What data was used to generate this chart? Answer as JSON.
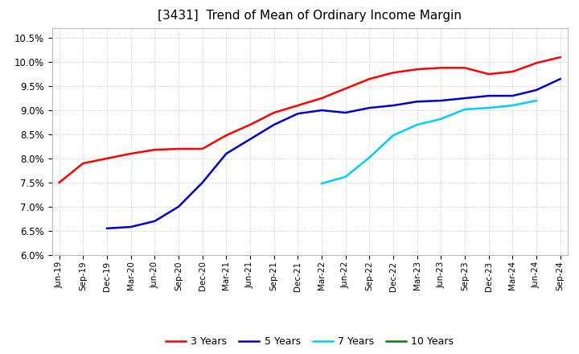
{
  "title": "[3431]  Trend of Mean of Ordinary Income Margin",
  "title_fontsize": 11,
  "background_color": "#ffffff",
  "grid_color": "#999999",
  "x_labels": [
    "Jun-19",
    "Sep-19",
    "Dec-19",
    "Mar-20",
    "Jun-20",
    "Sep-20",
    "Dec-20",
    "Mar-21",
    "Jun-21",
    "Sep-21",
    "Dec-21",
    "Mar-22",
    "Jun-22",
    "Sep-22",
    "Dec-22",
    "Mar-23",
    "Jun-23",
    "Sep-23",
    "Dec-23",
    "Mar-24",
    "Jun-24",
    "Sep-24"
  ],
  "ylim": [
    0.06,
    0.107
  ],
  "yticks": [
    0.06,
    0.065,
    0.07,
    0.075,
    0.08,
    0.085,
    0.09,
    0.095,
    0.1,
    0.105
  ],
  "series_3yr": {
    "color": "#ff0000",
    "indices": [
      0,
      1,
      2,
      3,
      4,
      5,
      6,
      7,
      8,
      9,
      10,
      11,
      12,
      13,
      14,
      15,
      16,
      17,
      18,
      19,
      20,
      21
    ],
    "values": [
      0.075,
      0.079,
      0.08,
      0.081,
      0.0818,
      0.082,
      0.082,
      0.0848,
      0.087,
      0.0895,
      0.091,
      0.0925,
      0.0945,
      0.0965,
      0.0978,
      0.0985,
      0.0988,
      0.0988,
      0.0975,
      0.098,
      0.0998,
      0.101
    ]
  },
  "series_5yr": {
    "color": "#0000cc",
    "indices": [
      2,
      3,
      4,
      5,
      6,
      7,
      8,
      9,
      10,
      11,
      12,
      13,
      14,
      15,
      16,
      17,
      18,
      19,
      20,
      21
    ],
    "values": [
      0.0655,
      0.0658,
      0.067,
      0.07,
      0.075,
      0.081,
      0.084,
      0.087,
      0.0893,
      0.09,
      0.0895,
      0.0905,
      0.091,
      0.0918,
      0.092,
      0.0925,
      0.093,
      0.093,
      0.0942,
      0.0965
    ]
  },
  "series_7yr": {
    "color": "#00ccff",
    "indices": [
      11,
      12,
      13,
      14,
      15,
      16,
      17,
      18,
      19,
      20
    ],
    "values": [
      0.0748,
      0.0762,
      0.0802,
      0.0848,
      0.087,
      0.0882,
      0.0902,
      0.0905,
      0.091,
      0.092
    ]
  },
  "series_10yr": {
    "color": "#008000",
    "indices": [],
    "values": []
  },
  "legend_labels": [
    "3 Years",
    "5 Years",
    "7 Years",
    "10 Years"
  ],
  "legend_colors": [
    "#ff0000",
    "#0000cc",
    "#00ccff",
    "#008000"
  ]
}
